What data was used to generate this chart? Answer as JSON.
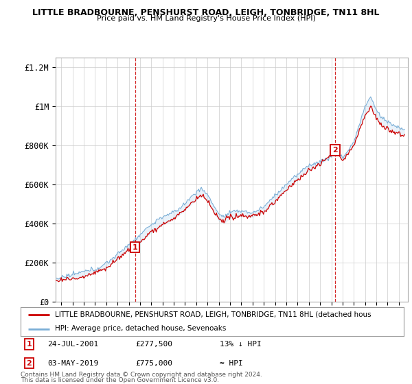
{
  "title1": "LITTLE BRADBOURNE, PENSHURST ROAD, LEIGH, TONBRIDGE, TN11 8HL",
  "title2": "Price paid vs. HM Land Registry's House Price Index (HPI)",
  "legend_line1": "LITTLE BRADBOURNE, PENSHURST ROAD, LEIGH, TONBRIDGE, TN11 8HL (detached hous",
  "legend_line2": "HPI: Average price, detached house, Sevenoaks",
  "footnote1": "Contains HM Land Registry data © Crown copyright and database right 2024.",
  "footnote2": "This data is licensed under the Open Government Licence v3.0.",
  "transaction1_label": "1",
  "transaction1_date": "24-JUL-2001",
  "transaction1_price": "£277,500",
  "transaction1_relation": "13% ↓ HPI",
  "transaction2_label": "2",
  "transaction2_date": "03-MAY-2019",
  "transaction2_price": "£775,000",
  "transaction2_relation": "≈ HPI",
  "transaction1_x": 2001.56,
  "transaction1_y": 277500,
  "transaction2_x": 2019.34,
  "transaction2_y": 775000,
  "line_color_property": "#cc0000",
  "line_color_hpi": "#7aaed6",
  "vline_color": "#cc0000",
  "fill_color": "#aaccee",
  "background_color": "#ffffff",
  "grid_color": "#cccccc",
  "ylim": [
    0,
    1250000
  ],
  "xlim_start": 1994.5,
  "xlim_end": 2025.8,
  "yticks": [
    0,
    200000,
    400000,
    600000,
    800000,
    1000000,
    1200000
  ],
  "ytick_labels": [
    "£0",
    "£200K",
    "£400K",
    "£600K",
    "£800K",
    "£1M",
    "£1.2M"
  ],
  "xticks": [
    1995,
    1996,
    1997,
    1998,
    1999,
    2000,
    2001,
    2002,
    2003,
    2004,
    2005,
    2006,
    2007,
    2008,
    2009,
    2010,
    2011,
    2012,
    2013,
    2014,
    2015,
    2016,
    2017,
    2018,
    2019,
    2020,
    2021,
    2022,
    2023,
    2024,
    2025
  ]
}
